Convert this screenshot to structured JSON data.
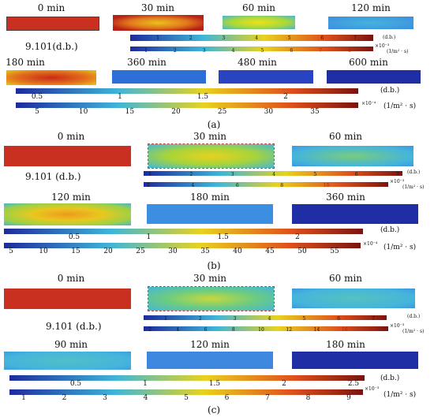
{
  "colors": {
    "dark_red": "#c0281c",
    "red": "#d9301e",
    "orange": "#ee7a1e",
    "yellow": "#e8d21e",
    "cyan": "#3fb6d8",
    "light_blue": "#4aa6e0",
    "mid_blue": "#2a5fd0",
    "dark_blue": "#1e2a9e"
  },
  "panels": [
    {
      "label": "(a)",
      "initial_value": "9.101(d.b.)",
      "times": [
        "0 min",
        "30 min",
        "60 min",
        "120 min",
        "180 min",
        "360 min",
        "480 min",
        "600 min"
      ],
      "small_bars": {
        "moisture_ticks": [
          "1",
          "2",
          "3",
          "4",
          "5",
          "6",
          "7"
        ],
        "moisture_unit": "(d.b.)",
        "flux_ticks": [
          "1",
          "2",
          "3",
          "4",
          "5",
          "6",
          "7",
          "8"
        ],
        "flux_exp": "×10⁻³",
        "flux_unit": "(1/m² · s)"
      },
      "big_bars": {
        "moisture_ticks": [
          "0.5",
          "1",
          "1.5",
          "2"
        ],
        "moisture_unit": "(d.b.)",
        "flux_ticks": [
          "5",
          "10",
          "15",
          "20",
          "25",
          "30",
          "35"
        ],
        "flux_exp": "×10⁻⁴",
        "flux_unit": "(1/m² · s)"
      }
    },
    {
      "label": "(b)",
      "initial_value": "9.101 (d.b.)",
      "times": [
        "0 min",
        "30 min",
        "60 min",
        "120 min",
        "180 min",
        "360 min"
      ],
      "small_bars": {
        "moisture_ticks": [
          "1",
          "2",
          "3",
          "4",
          "5",
          "6",
          "7"
        ],
        "moisture_unit": "(d.b.)",
        "flux_ticks": [
          "2",
          "4",
          "6",
          "8",
          "10",
          "12"
        ],
        "flux_exp": "×10⁻³",
        "flux_unit": "(1/m² · s)"
      },
      "big_bars": {
        "moisture_ticks": [
          "0.5",
          "1",
          "1.5",
          "2"
        ],
        "moisture_unit": "(d.b.)",
        "flux_ticks": [
          "5",
          "10",
          "15",
          "20",
          "25",
          "30",
          "35",
          "40",
          "45",
          "50",
          "55"
        ],
        "flux_exp": "×10⁻⁴",
        "flux_unit": "(1/m² · s)"
      }
    },
    {
      "label": "(c)",
      "initial_value": "9.101 (d.b.)",
      "times": [
        "0 min",
        "30 min",
        "60 min",
        "90 min",
        "120 min",
        "180 min"
      ],
      "small_bars": {
        "moisture_ticks": [
          "1",
          "2",
          "3",
          "4",
          "5",
          "6",
          "7"
        ],
        "moisture_unit": "(d.b.)",
        "flux_ticks": [
          "2",
          "4",
          "6",
          "8",
          "10",
          "12",
          "14",
          "16",
          "18"
        ],
        "flux_exp": "×10⁻³",
        "flux_unit": "(1/m² · s)"
      },
      "big_bars": {
        "moisture_ticks": [
          "0.5",
          "1",
          "1.5",
          "2",
          "2.5"
        ],
        "moisture_unit": "(d.b.)",
        "flux_ticks": [
          "1",
          "2",
          "3",
          "4",
          "5",
          "6",
          "7",
          "8",
          "9"
        ],
        "flux_exp": "×10⁻³",
        "flux_unit": "(1/m² · s)"
      }
    }
  ]
}
